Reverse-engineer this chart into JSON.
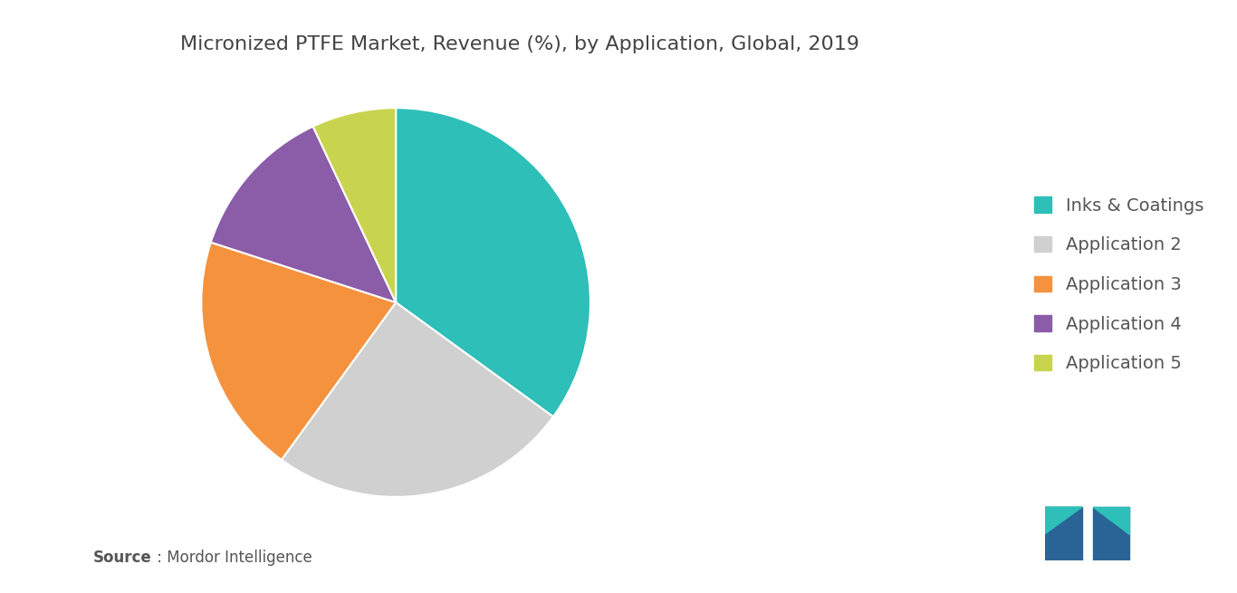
{
  "title": "Micronized PTFE Market, Revenue (%), by Application, Global, 2019",
  "labels": [
    "Inks & Coatings",
    "Application 2",
    "Application 3",
    "Application 4",
    "Application 5"
  ],
  "values": [
    35,
    25,
    20,
    13,
    7
  ],
  "colors": [
    "#2dbfb8",
    "#d0d0d0",
    "#f5923e",
    "#8b5ca8",
    "#c8d44e"
  ],
  "source_bold": "Source",
  "source_rest": " : Mordor Intelligence",
  "background_color": "#ffffff",
  "startangle": 90,
  "legend_fontsize": 14,
  "title_fontsize": 16,
  "logo_left_color": "#2a6496",
  "logo_teal_color": "#2dbfb8"
}
